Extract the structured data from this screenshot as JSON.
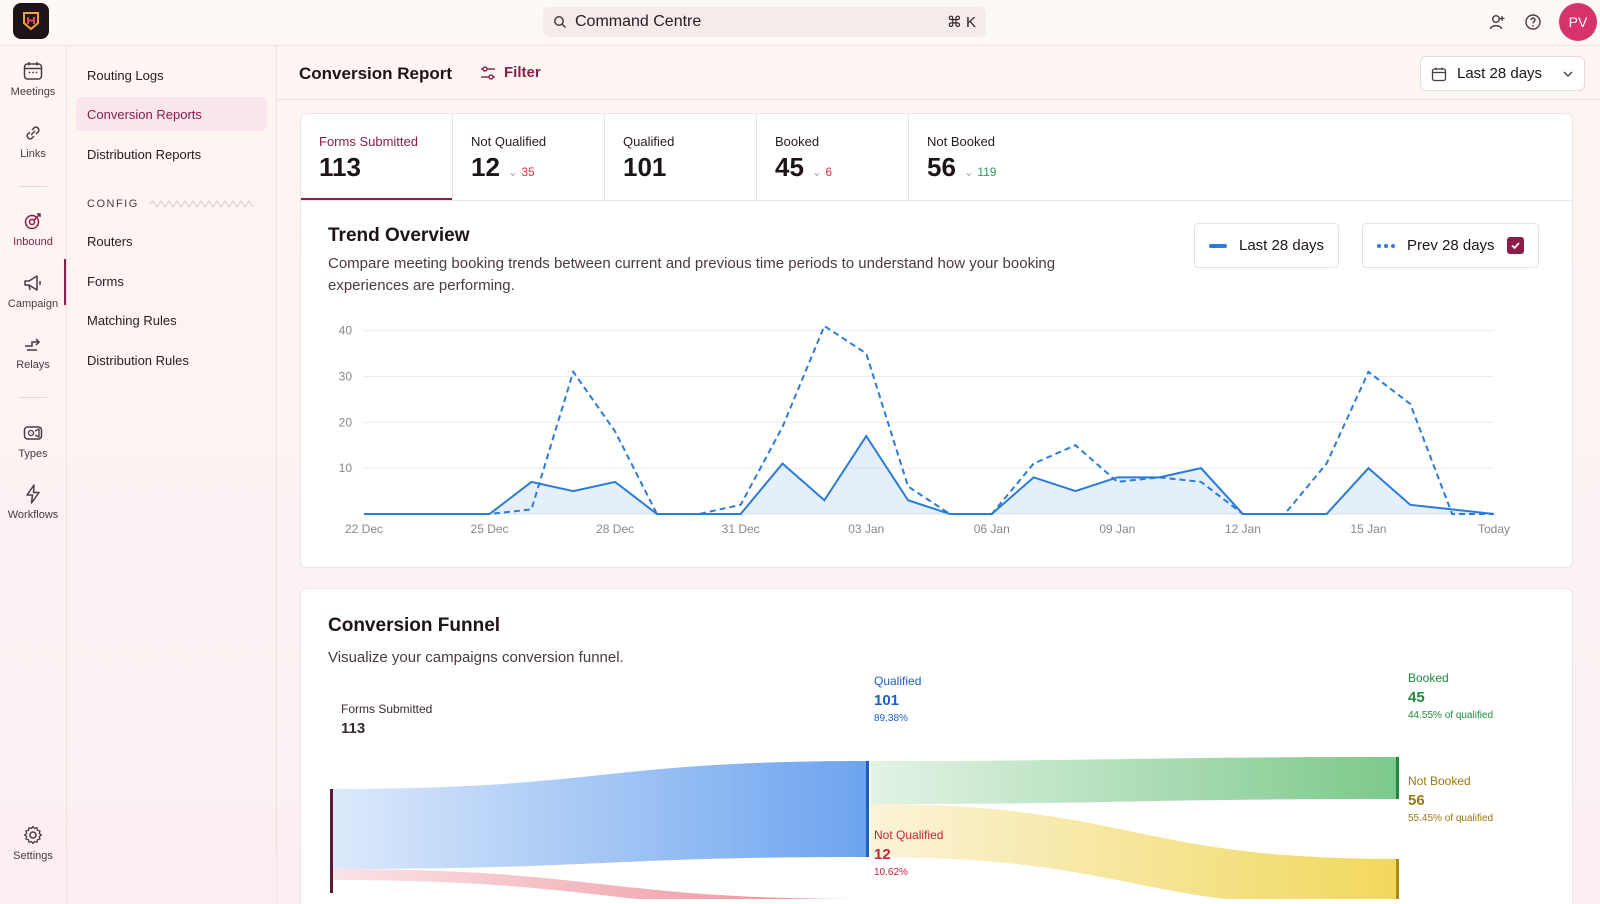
{
  "search": {
    "label": "Command Centre",
    "shortcut": "⌘ K"
  },
  "user": {
    "initials": "PV"
  },
  "rail": {
    "meetings": "Meetings",
    "links": "Links",
    "inbound": "Inbound",
    "campaign": "Campaign",
    "relays": "Relays",
    "types": "Types",
    "workflows": "Workflows",
    "settings": "Settings"
  },
  "subnav": {
    "routing_logs": "Routing Logs",
    "conversion_reports": "Conversion Reports",
    "distribution_reports": "Distribution Reports",
    "config_label": "CONFIG",
    "routers": "Routers",
    "forms": "Forms",
    "matching_rules": "Matching Rules",
    "distribution_rules": "Distribution Rules"
  },
  "header": {
    "title": "Conversion Report",
    "filter": "Filter",
    "date_range": "Last 28 days"
  },
  "stats": [
    {
      "label": "Forms Submitted",
      "value": "113",
      "delta": ""
    },
    {
      "label": "Not Qualified",
      "value": "12",
      "delta": "35",
      "delta_color": "#d9304f"
    },
    {
      "label": "Qualified",
      "value": "101",
      "delta": ""
    },
    {
      "label": "Booked",
      "value": "45",
      "delta": "6",
      "delta_color": "#d9304f"
    },
    {
      "label": "Not Booked",
      "value": "56",
      "delta": "119",
      "delta_color": "#23a35a"
    }
  ],
  "trend": {
    "title": "Trend Overview",
    "desc_line1": "Compare meeting booking trends between current and previous time periods to understand how your booking",
    "desc_line2": "experiences are performing.",
    "legend_current": "Last 28 days",
    "legend_prev": "Prev 28 days"
  },
  "chart_data": {
    "type": "line",
    "x": [
      "22 Dec",
      "23 Dec",
      "24 Dec",
      "25 Dec",
      "26 Dec",
      "27 Dec",
      "28 Dec",
      "29 Dec",
      "30 Dec",
      "31 Dec",
      "01 Jan",
      "02 Jan",
      "03 Jan",
      "04 Jan",
      "05 Jan",
      "06 Jan",
      "07 Jan",
      "08 Jan",
      "09 Jan",
      "10 Jan",
      "11 Jan",
      "12 Jan",
      "13 Jan",
      "14 Jan",
      "15 Jan",
      "16 Jan",
      "17 Jan",
      "Today"
    ],
    "x_ticks": [
      "22 Dec",
      "25 Dec",
      "28 Dec",
      "31 Dec",
      "03 Jan",
      "06 Jan",
      "09 Jan",
      "12 Jan",
      "15 Jan",
      "Today"
    ],
    "y_ticks": [
      10,
      20,
      30,
      40
    ],
    "ylim": [
      0,
      41
    ],
    "series": [
      {
        "name": "Last 28 days",
        "style": "solid",
        "color": "#2b7bd9",
        "values": [
          0,
          0,
          0,
          0,
          7,
          5,
          7,
          0,
          0,
          0,
          11,
          3,
          17,
          3,
          0,
          0,
          8,
          5,
          8,
          8,
          10,
          0,
          0,
          0,
          10,
          2,
          1,
          0
        ]
      },
      {
        "name": "Prev 28 days",
        "style": "dashed",
        "color": "#2b7bd9",
        "values": [
          0,
          0,
          0,
          0,
          1,
          31,
          18,
          0,
          0,
          2,
          19,
          41,
          35,
          6,
          0,
          0,
          11,
          15,
          7,
          8,
          7,
          0,
          0,
          11,
          31,
          24,
          0,
          0
        ]
      }
    ]
  },
  "funnel": {
    "title": "Conversion Funnel",
    "desc": "Visualize your campaigns conversion funnel.",
    "forms_label": "Forms Submitted",
    "forms_value": "113",
    "qualified_label": "Qualified",
    "qualified_value": "101",
    "qualified_pct": "89.38%",
    "not_qualified_label": "Not Qualified",
    "not_qualified_value": "12",
    "not_qualified_pct": "10.62%",
    "booked_label": "Booked",
    "booked_value": "45",
    "booked_pct": "44.55% of qualified",
    "not_booked_label": "Not Booked",
    "not_booked_value": "56",
    "not_booked_pct": "55.45% of qualified"
  }
}
